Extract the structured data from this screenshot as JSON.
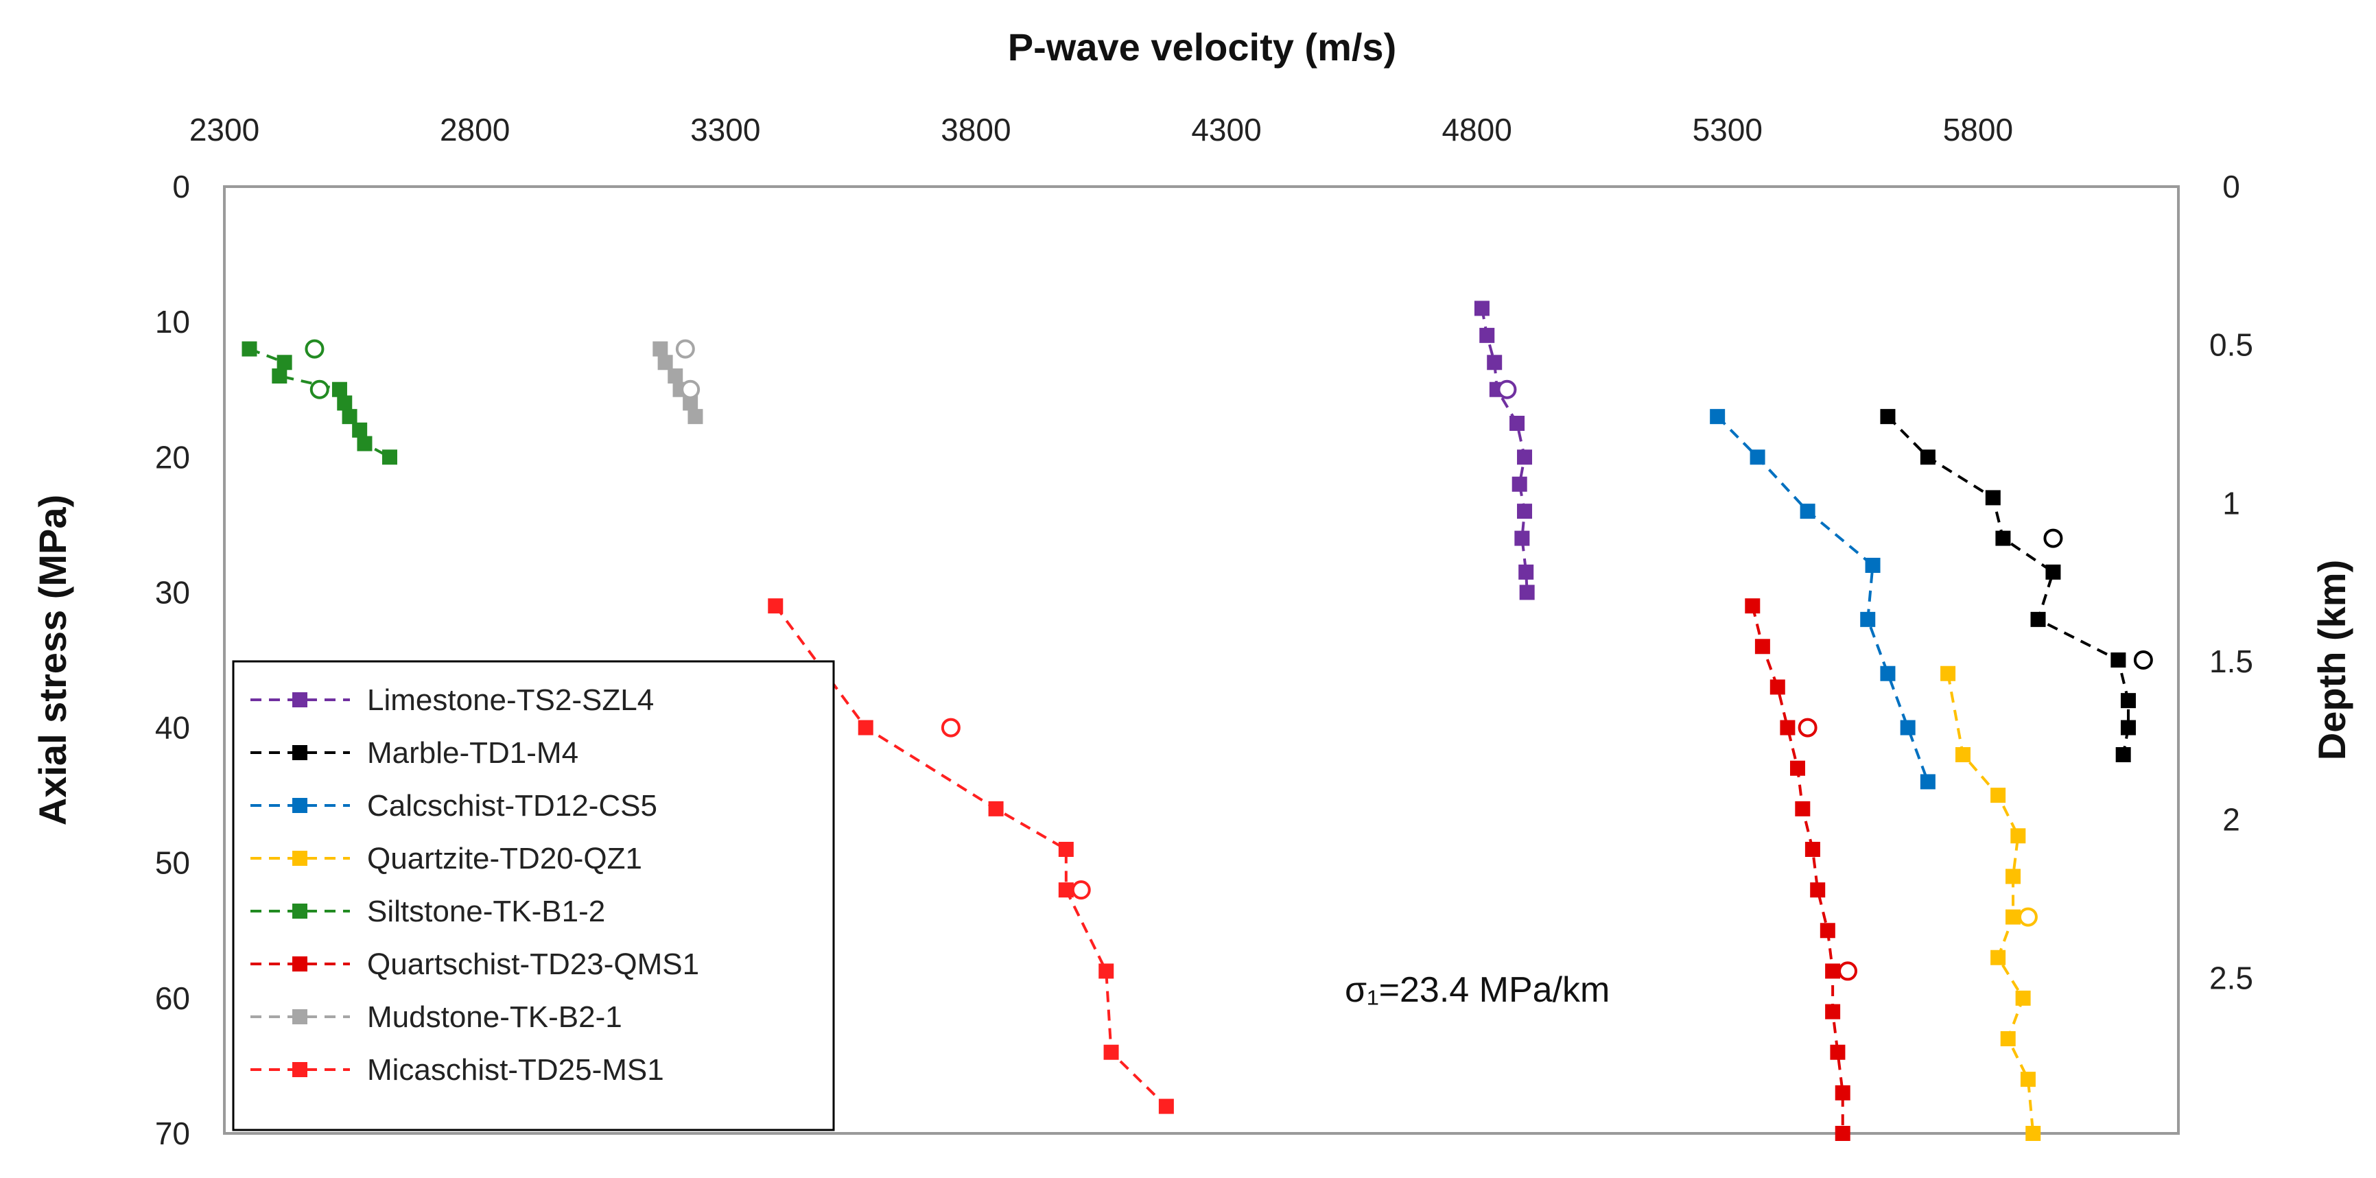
{
  "chart_data": {
    "type": "scatter",
    "title": "",
    "xlabel": "P-wave velocity (m/s)",
    "ylabel": "Axial stress (MPa)",
    "y2label": "Depth (km)",
    "xlim": [
      2300,
      6200
    ],
    "ylim": [
      0,
      70
    ],
    "y_inverted": true,
    "x_axis_position": "top",
    "x_ticks": [
      2300,
      2800,
      3300,
      3800,
      4300,
      4800,
      5300,
      5800
    ],
    "y_ticks": [
      0,
      10,
      20,
      30,
      40,
      50,
      60,
      70
    ],
    "y2_ticks": [
      {
        "label": "0",
        "stress": 0
      },
      {
        "label": "0.5",
        "stress": 11.7
      },
      {
        "label": "1",
        "stress": 23.4
      },
      {
        "label": "1.5",
        "stress": 35.1
      },
      {
        "label": "2",
        "stress": 46.8
      },
      {
        "label": "2.5",
        "stress": 58.5
      }
    ],
    "grid": false,
    "annotation": "σ₁=23.4 MPa/km",
    "legend_position": "bottom-left",
    "series": [
      {
        "name": "Limestone-TS2-SZL4",
        "color": "#7030A0",
        "points": [
          [
            4810,
            9
          ],
          [
            4820,
            11
          ],
          [
            4835,
            13
          ],
          [
            4840,
            15
          ],
          [
            4880,
            17.5
          ],
          [
            4895,
            20
          ],
          [
            4885,
            22
          ],
          [
            4895,
            24
          ],
          [
            4890,
            26
          ],
          [
            4898,
            28.5
          ],
          [
            4900,
            30
          ]
        ],
        "open_points": [
          [
            4860,
            15
          ]
        ]
      },
      {
        "name": "Marble-TD1-M4",
        "color": "#000000",
        "points": [
          [
            5620,
            17
          ],
          [
            5700,
            20
          ],
          [
            5830,
            23
          ],
          [
            5850,
            26
          ],
          [
            5950,
            28.5
          ],
          [
            5920,
            32
          ],
          [
            6080,
            35
          ],
          [
            6100,
            38
          ],
          [
            6100,
            40
          ],
          [
            6090,
            42
          ]
        ],
        "open_points": [
          [
            5950,
            26
          ],
          [
            6130,
            35
          ]
        ]
      },
      {
        "name": "Calcschist-TD12-CS5",
        "color": "#0070C0",
        "points": [
          [
            5280,
            17
          ],
          [
            5360,
            20
          ],
          [
            5460,
            24
          ],
          [
            5590,
            28
          ],
          [
            5580,
            32
          ],
          [
            5620,
            36
          ],
          [
            5660,
            40
          ],
          [
            5700,
            44
          ]
        ],
        "open_points": []
      },
      {
        "name": "Quartzite-TD20-QZ1",
        "color": "#FFC000",
        "points": [
          [
            5740,
            36
          ],
          [
            5770,
            42
          ],
          [
            5840,
            45
          ],
          [
            5880,
            48
          ],
          [
            5870,
            51
          ],
          [
            5870,
            54
          ],
          [
            5840,
            57
          ],
          [
            5890,
            60
          ],
          [
            5860,
            63
          ],
          [
            5900,
            66
          ],
          [
            5910,
            70
          ]
        ],
        "open_points": [
          [
            5900,
            54
          ]
        ]
      },
      {
        "name": "Siltstone-TK-B1-2",
        "color": "#228B22",
        "points": [
          [
            2350,
            12
          ],
          [
            2420,
            13
          ],
          [
            2410,
            14
          ],
          [
            2530,
            15
          ],
          [
            2540,
            16
          ],
          [
            2550,
            17
          ],
          [
            2570,
            18
          ],
          [
            2580,
            19
          ],
          [
            2630,
            20
          ]
        ],
        "open_points": [
          [
            2480,
            12
          ],
          [
            2490,
            15
          ]
        ]
      },
      {
        "name": "Quartschist-TD23-QMS1",
        "color": "#E00000",
        "points": [
          [
            5350,
            31
          ],
          [
            5370,
            34
          ],
          [
            5400,
            37
          ],
          [
            5420,
            40
          ],
          [
            5440,
            43
          ],
          [
            5450,
            46
          ],
          [
            5470,
            49
          ],
          [
            5480,
            52
          ],
          [
            5500,
            55
          ],
          [
            5510,
            58
          ],
          [
            5510,
            61
          ],
          [
            5520,
            64
          ],
          [
            5530,
            67
          ],
          [
            5530,
            70
          ]
        ],
        "open_points": [
          [
            5460,
            40
          ],
          [
            5540,
            58
          ]
        ]
      },
      {
        "name": "Mudstone-TK-B2-1",
        "color": "#A6A6A6",
        "points": [
          [
            3170,
            12
          ],
          [
            3180,
            13
          ],
          [
            3200,
            14
          ],
          [
            3210,
            15
          ],
          [
            3230,
            16
          ],
          [
            3240,
            17
          ]
        ],
        "open_points": [
          [
            3220,
            12
          ],
          [
            3230,
            15
          ]
        ]
      },
      {
        "name": "Micaschist-TD25-MS1",
        "color": "#FF2020",
        "points": [
          [
            3400,
            31
          ],
          [
            3580,
            40
          ],
          [
            3840,
            46
          ],
          [
            3980,
            49
          ],
          [
            3980,
            52
          ],
          [
            4060,
            58
          ],
          [
            4070,
            64
          ],
          [
            4180,
            68
          ]
        ],
        "open_points": [
          [
            3750,
            40
          ],
          [
            4010,
            52
          ]
        ]
      }
    ]
  }
}
